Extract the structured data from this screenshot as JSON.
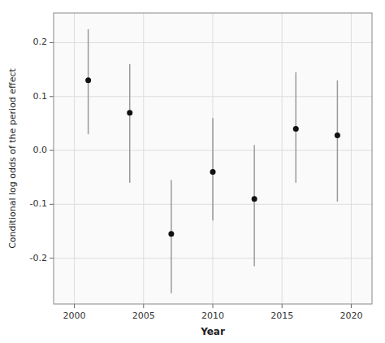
{
  "chart_data": {
    "type": "scatter",
    "xlabel": "Year",
    "ylabel": "Conditional log odds of the period effect",
    "x": [
      2001,
      2004,
      2007,
      2010,
      2013,
      2016,
      2019
    ],
    "values": [
      0.13,
      0.07,
      -0.155,
      -0.04,
      -0.09,
      0.04,
      0.028
    ],
    "lower": [
      0.03,
      -0.06,
      -0.265,
      -0.13,
      -0.215,
      -0.06,
      -0.095
    ],
    "upper": [
      0.225,
      0.16,
      -0.055,
      0.06,
      0.01,
      0.145,
      0.13
    ],
    "color": "#111111",
    "xlim": [
      1998.5,
      2021.5
    ],
    "ylim": [
      -0.285,
      0.255
    ],
    "xticks": [
      2000,
      2005,
      2010,
      2015,
      2020
    ],
    "yticks": [
      -0.2,
      -0.1,
      {
        "value": 0,
        "label": "0.0"
      },
      0.1,
      0.2
    ],
    "grid": true
  }
}
